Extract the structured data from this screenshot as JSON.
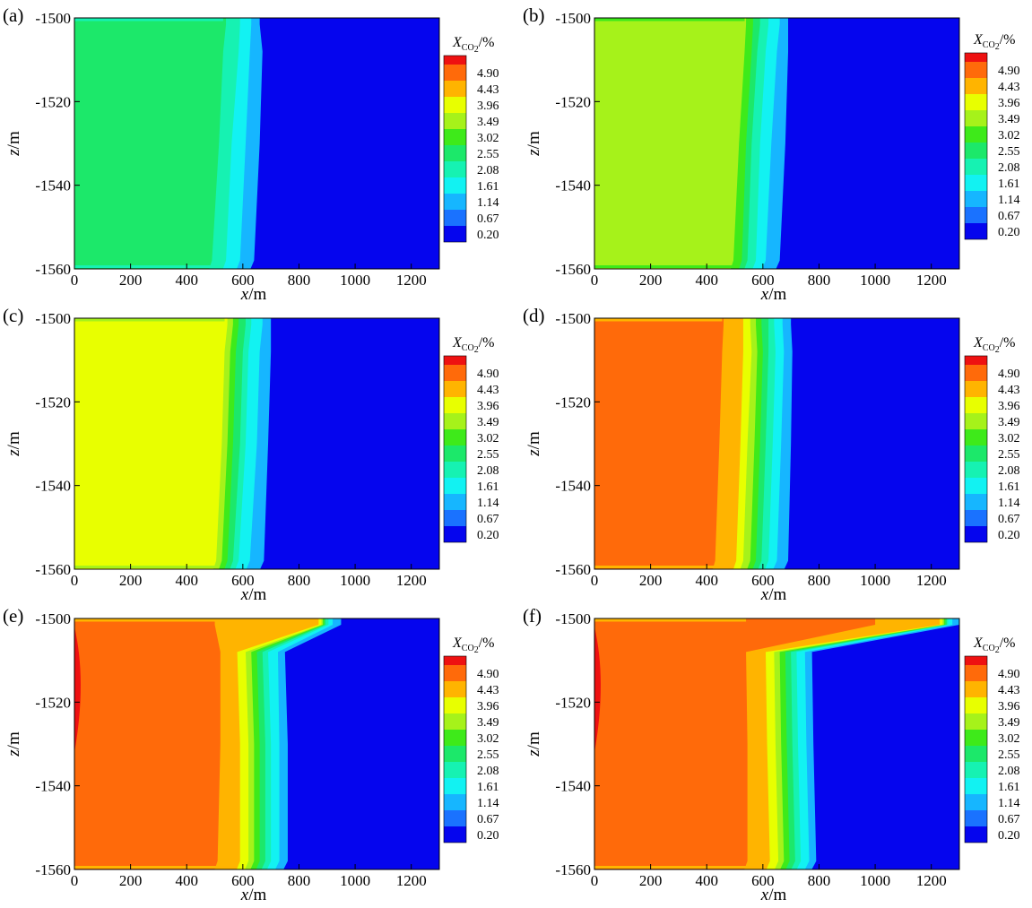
{
  "figure": {
    "colorbar": {
      "title": {
        "main": "X",
        "sub": "CO",
        "sub2": "2",
        "unit": "/%"
      },
      "levels": [
        "4.90",
        "4.43",
        "3.96",
        "3.49",
        "3.02",
        "2.55",
        "2.08",
        "1.61",
        "1.14",
        "0.67",
        "0.20"
      ],
      "colors": [
        "#ee1111",
        "#ff6a0a",
        "#ffb400",
        "#e8ff00",
        "#a6f21a",
        "#3eea1a",
        "#1ce86a",
        "#16f2b2",
        "#12f2f2",
        "#16b6ff",
        "#1a72ff",
        "#0505ee"
      ]
    },
    "background_color": "#0505ee"
  },
  "chart_data": [
    {
      "panel": "(a)",
      "type": "heatmap",
      "xlabel": "x/m",
      "ylabel": "z/m",
      "xlim": [
        0,
        1300
      ],
      "ylim": [
        -1560,
        -1500
      ],
      "xticks": [
        "0",
        "200",
        "400",
        "600",
        "800",
        "1000",
        "1200"
      ],
      "yticks": [
        "-1500",
        "-1520",
        "-1540",
        "-1560"
      ],
      "plume_core_value_pct": 2.08,
      "contours": [
        {
          "level": 0.67,
          "front_x": [
            660,
            670,
            660,
            640
          ]
        },
        {
          "level": 1.14,
          "front_x": [
            630,
            625,
            610,
            590
          ]
        },
        {
          "level": 1.61,
          "front_x": [
            590,
            585,
            560,
            540
          ]
        },
        {
          "level": 2.08,
          "front_x": [
            540,
            530,
            515,
            490
          ]
        }
      ]
    },
    {
      "panel": "(b)",
      "type": "heatmap",
      "xlabel": "x/m",
      "ylabel": "z/m",
      "xlim": [
        0,
        1300
      ],
      "ylim": [
        -1560,
        -1500
      ],
      "xticks": [
        "0",
        "200",
        "400",
        "600",
        "800",
        "1000",
        "1200"
      ],
      "yticks": [
        "-1500",
        "-1520",
        "-1540",
        "-1560"
      ],
      "plume_core_value_pct": 3.02,
      "contours": [
        {
          "level": 0.67,
          "front_x": [
            690,
            690,
            680,
            660
          ]
        },
        {
          "level": 1.14,
          "front_x": [
            660,
            650,
            630,
            610
          ]
        },
        {
          "level": 1.61,
          "front_x": [
            620,
            610,
            590,
            575
          ]
        },
        {
          "level": 2.08,
          "front_x": [
            590,
            580,
            560,
            545
          ]
        },
        {
          "level": 2.55,
          "front_x": [
            565,
            560,
            540,
            525
          ]
        },
        {
          "level": 3.02,
          "front_x": [
            540,
            535,
            515,
            495
          ]
        }
      ]
    },
    {
      "panel": "(c)",
      "type": "heatmap",
      "xlabel": "x/m",
      "ylabel": "z/m",
      "xlim": [
        0,
        1300
      ],
      "ylim": [
        -1560,
        -1500
      ],
      "xticks": [
        "0",
        "200",
        "400",
        "600",
        "800",
        "1000",
        "1200"
      ],
      "yticks": [
        "-1500",
        "-1520",
        "-1540",
        "-1560"
      ],
      "plume_core_value_pct": 3.96,
      "contours": [
        {
          "level": 0.67,
          "front_x": [
            700,
            700,
            690,
            675
          ]
        },
        {
          "level": 1.14,
          "front_x": [
            670,
            660,
            650,
            625
          ]
        },
        {
          "level": 1.61,
          "front_x": [
            630,
            620,
            610,
            585
          ]
        },
        {
          "level": 2.08,
          "front_x": [
            610,
            600,
            590,
            565
          ]
        },
        {
          "level": 2.55,
          "front_x": [
            585,
            575,
            565,
            545
          ]
        },
        {
          "level": 3.02,
          "front_x": [
            565,
            555,
            545,
            525
          ]
        },
        {
          "level": 3.49,
          "front_x": [
            545,
            535,
            525,
            505
          ]
        }
      ]
    },
    {
      "panel": "(d)",
      "type": "heatmap",
      "xlabel": "x/m",
      "ylabel": "z/m",
      "xlim": [
        0,
        1300
      ],
      "ylim": [
        -1560,
        -1500
      ],
      "xticks": [
        "0",
        "200",
        "400",
        "600",
        "800",
        "1000",
        "1200"
      ],
      "yticks": [
        "-1500",
        "-1520",
        "-1540",
        "-1560"
      ],
      "plume_core_value_pct": 4.43,
      "contours": [
        {
          "level": 0.67,
          "front_x": [
            700,
            705,
            700,
            690
          ]
        },
        {
          "level": 1.14,
          "front_x": [
            670,
            675,
            665,
            650
          ]
        },
        {
          "level": 1.61,
          "front_x": [
            640,
            645,
            635,
            620
          ]
        },
        {
          "level": 2.08,
          "front_x": [
            620,
            620,
            610,
            595
          ]
        },
        {
          "level": 2.55,
          "front_x": [
            595,
            600,
            590,
            575
          ]
        },
        {
          "level": 3.02,
          "front_x": [
            575,
            580,
            570,
            555
          ]
        },
        {
          "level": 3.49,
          "front_x": [
            555,
            560,
            545,
            530
          ]
        },
        {
          "level": 3.96,
          "front_x": [
            530,
            530,
            520,
            505
          ]
        },
        {
          "level": 4.43,
          "front_x": [
            460,
            455,
            445,
            430
          ]
        }
      ]
    },
    {
      "panel": "(e)",
      "type": "heatmap",
      "xlabel": "x/m",
      "ylabel": "z/m",
      "xlim": [
        0,
        1300
      ],
      "ylim": [
        -1560,
        -1500
      ],
      "xticks": [
        "0",
        "200",
        "400",
        "600",
        "800",
        "1000",
        "1200"
      ],
      "yticks": [
        "-1500",
        "-1520",
        "-1540",
        "-1560"
      ],
      "plume_core_value_pct": 4.43,
      "max_value_pct": 4.9,
      "contours": [
        {
          "level": 0.67,
          "front_x": [
            950,
            750,
            760,
            760
          ]
        },
        {
          "level": 1.14,
          "front_x": [
            920,
            725,
            730,
            730
          ]
        },
        {
          "level": 1.61,
          "front_x": [
            905,
            690,
            700,
            700
          ]
        },
        {
          "level": 2.08,
          "front_x": [
            895,
            670,
            680,
            680
          ]
        },
        {
          "level": 2.55,
          "front_x": [
            890,
            650,
            660,
            660
          ]
        },
        {
          "level": 3.02,
          "front_x": [
            885,
            630,
            640,
            640
          ]
        },
        {
          "level": 3.49,
          "front_x": [
            880,
            610,
            620,
            620
          ]
        },
        {
          "level": 3.96,
          "front_x": [
            870,
            580,
            590,
            590
          ]
        },
        {
          "level": 4.43,
          "front_x": [
            500,
            520,
            520,
            510
          ]
        }
      ]
    },
    {
      "panel": "(f)",
      "type": "heatmap",
      "xlabel": "x/m",
      "ylabel": "z/m",
      "xlim": [
        0,
        1300
      ],
      "ylim": [
        -1560,
        -1500
      ],
      "xticks": [
        "0",
        "200",
        "400",
        "600",
        "800",
        "1000",
        "1200"
      ],
      "yticks": [
        "-1500",
        "-1520",
        "-1540",
        "-1560"
      ],
      "plume_core_value_pct": 4.43,
      "max_value_pct": 4.9,
      "contours": [
        {
          "level": 0.67,
          "front_x": [
            1300,
            775,
            780,
            790
          ]
        },
        {
          "level": 1.14,
          "front_x": [
            1275,
            750,
            755,
            765
          ]
        },
        {
          "level": 1.61,
          "front_x": [
            1260,
            720,
            725,
            735
          ]
        },
        {
          "level": 2.08,
          "front_x": [
            1255,
            700,
            705,
            715
          ]
        },
        {
          "level": 2.55,
          "front_x": [
            1250,
            680,
            685,
            695
          ]
        },
        {
          "level": 3.02,
          "front_x": [
            1245,
            660,
            665,
            675
          ]
        },
        {
          "level": 3.49,
          "front_x": [
            1240,
            640,
            645,
            655
          ]
        },
        {
          "level": 3.96,
          "front_x": [
            1230,
            610,
            615,
            625
          ]
        },
        {
          "level": 4.43,
          "front_x": [
            1000,
            540,
            545,
            545
          ]
        }
      ]
    }
  ]
}
